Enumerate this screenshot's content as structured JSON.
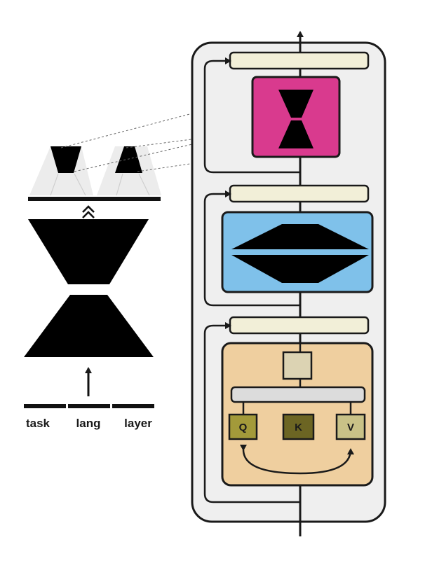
{
  "inputs": {
    "task": "task",
    "lang": "lang",
    "layer": "layer"
  },
  "attention": {
    "q": "Q",
    "k": "K",
    "v": "V"
  },
  "colors": {
    "adapter_block": "#d93a8e",
    "feedforward_block": "#7fc1ea",
    "attention_block": "#efcf9f",
    "layernorm": "#f2efd8",
    "transformer_panel": "#efefef",
    "q": "#a39a3a",
    "k": "#6c6523",
    "v": "#c9c287"
  }
}
